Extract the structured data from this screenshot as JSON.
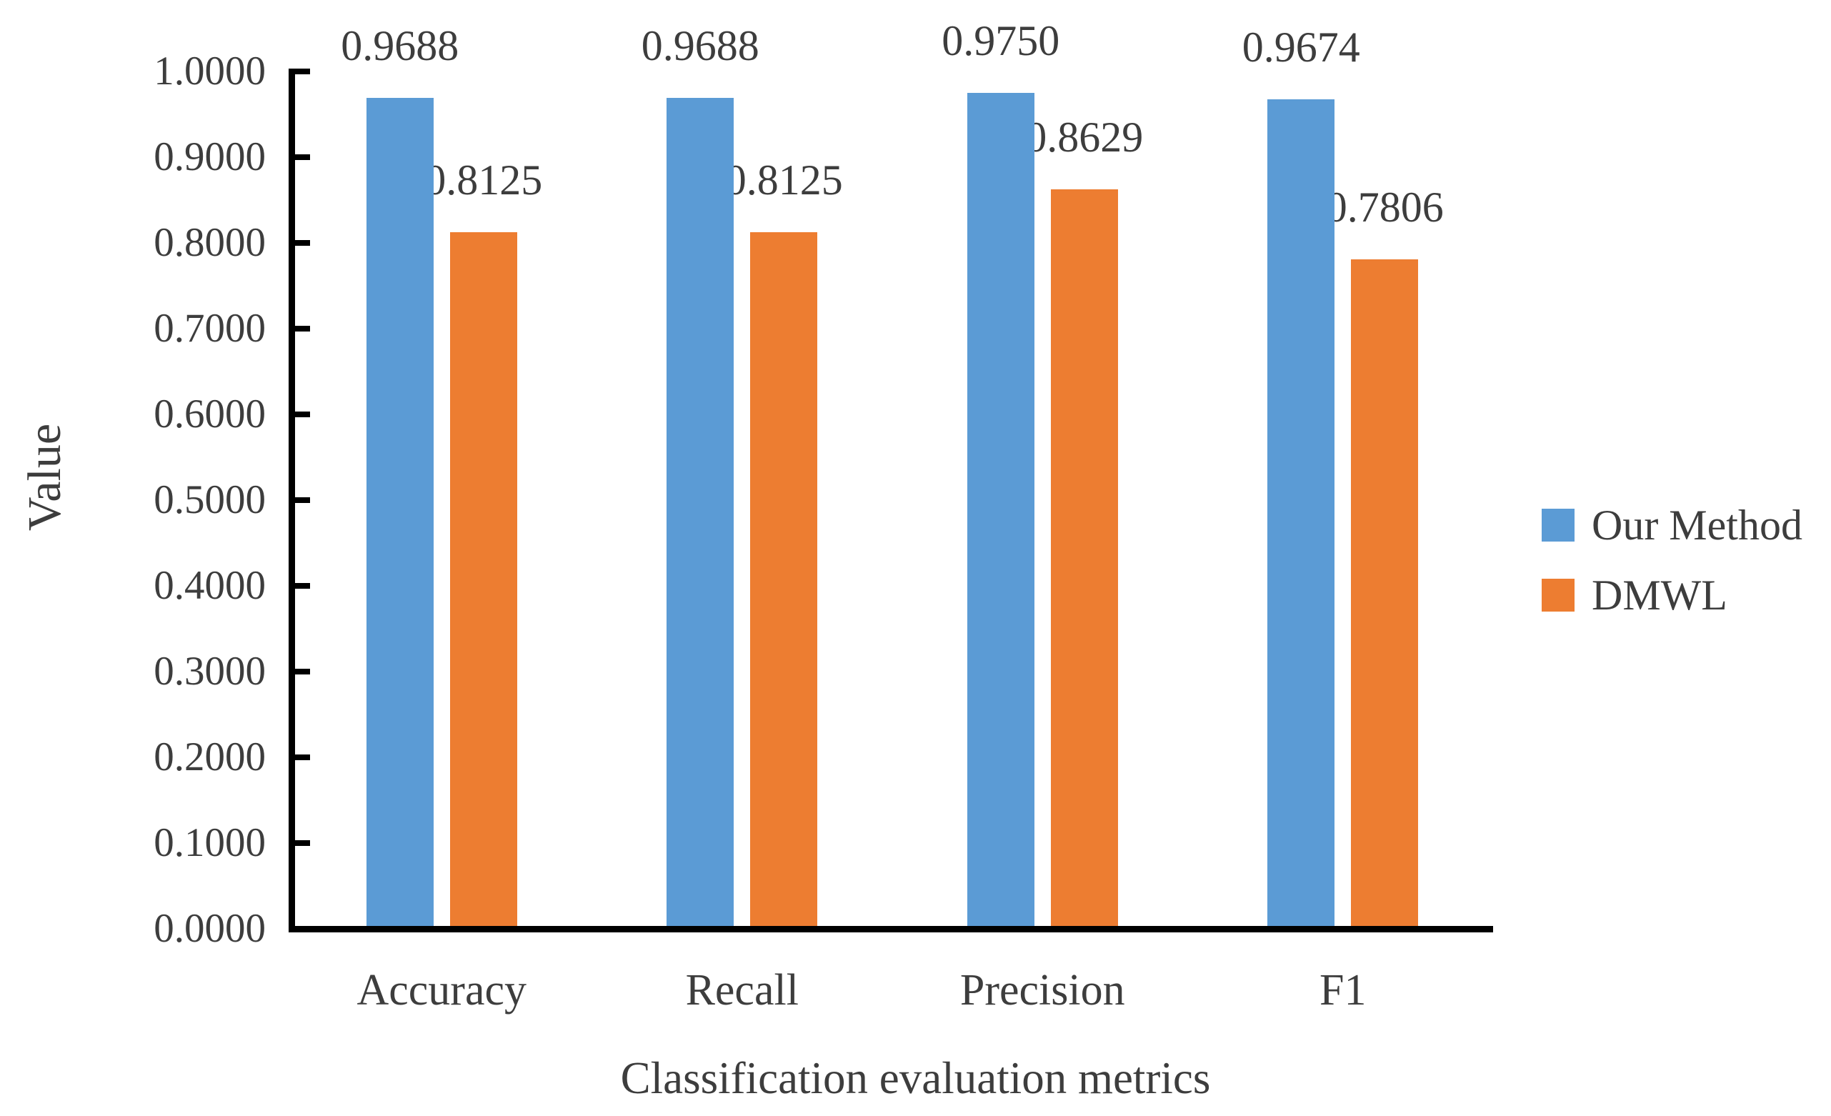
{
  "chart_data": {
    "type": "bar",
    "title": "",
    "xlabel": "Classification evaluation metrics",
    "ylabel": "Value",
    "categories": [
      "Accuracy",
      "Recall",
      "Precision",
      "F1"
    ],
    "series": [
      {
        "name": "Our Method",
        "color": "#5B9BD5",
        "values": [
          0.9688,
          0.9688,
          0.975,
          0.9674
        ],
        "data_labels": [
          "0.9688",
          "0.9688",
          "0.9750",
          "0.9674"
        ]
      },
      {
        "name": "DMWL",
        "color": "#ED7D31",
        "values": [
          0.8125,
          0.8125,
          0.8629,
          0.7806
        ],
        "data_labels": [
          "0.8125",
          "0.8125",
          "0.8629",
          "0.7806"
        ]
      }
    ],
    "y_axis": {
      "min": 0,
      "max": 1,
      "step": 0.1,
      "tick_labels": [
        "0.0000",
        "0.1000",
        "0.2000",
        "0.3000",
        "0.4000",
        "0.5000",
        "0.6000",
        "0.7000",
        "0.8000",
        "0.9000",
        "1.0000"
      ]
    },
    "legend": {
      "position": "right",
      "entries": [
        "Our Method",
        "DMWL"
      ]
    },
    "grid": false,
    "axis_color": "#000000",
    "text_color": "#3d3d3d"
  }
}
